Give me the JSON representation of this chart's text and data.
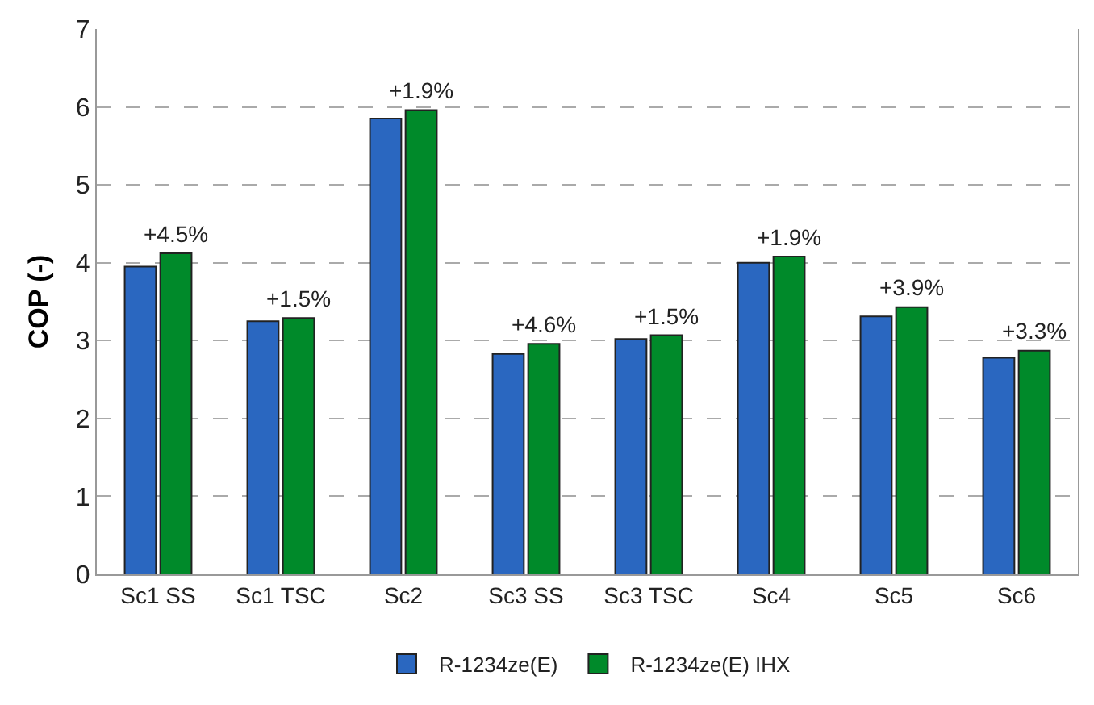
{
  "chart_data": {
    "type": "bar",
    "ylabel": "COP (-)",
    "categories": [
      "Sc1 SS",
      "Sc1 TSC",
      "Sc2",
      "Sc3 SS",
      "Sc3 TSC",
      "Sc4",
      "Sc5",
      "Sc6"
    ],
    "series": [
      {
        "name": "R-1234ze(E)",
        "color": "#2a67c0",
        "values": [
          3.95,
          3.25,
          5.85,
          2.83,
          3.02,
          4.0,
          3.31,
          2.78
        ]
      },
      {
        "name": "R-1234ze(E) IHX",
        "color": "#008a2a",
        "values": [
          4.12,
          3.29,
          5.96,
          2.96,
          3.07,
          4.08,
          3.43,
          2.87
        ]
      }
    ],
    "annotations": [
      {
        "text": "+4.5%",
        "x": "Sc1 SS",
        "y": 4.12
      },
      {
        "text": "+1.5%",
        "x": "Sc1 TSC",
        "y": 3.29
      },
      {
        "text": "+1.9%",
        "x": "Sc2",
        "y": 5.96
      },
      {
        "text": "+4.6%",
        "x": "Sc3 SS",
        "y": 2.96
      },
      {
        "text": "+1.5%",
        "x": "Sc3 TSC",
        "y": 3.07
      },
      {
        "text": "+1.9%",
        "x": "Sc4",
        "y": 4.08
      },
      {
        "text": "+3.9%",
        "x": "Sc5",
        "y": 3.43
      },
      {
        "text": "+3.3%",
        "x": "Sc6",
        "y": 2.87
      }
    ],
    "ylim": [
      0,
      7
    ],
    "yticks": [
      0,
      1,
      2,
      3,
      4,
      5,
      6,
      7
    ],
    "grid": "y",
    "legend": "bottom"
  }
}
